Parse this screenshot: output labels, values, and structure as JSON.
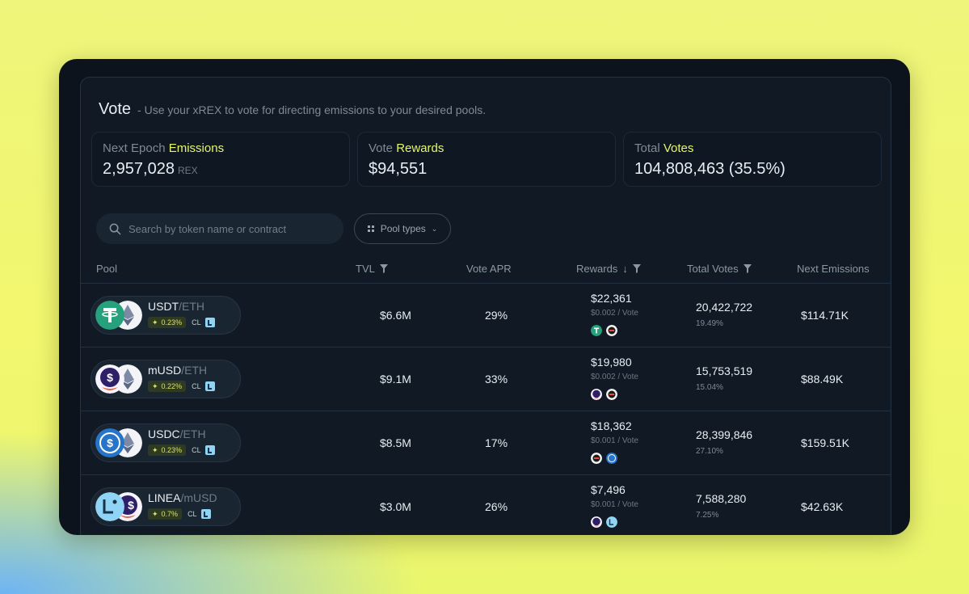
{
  "app": {
    "title": "Vote",
    "subtitle": "- Use your xREX to vote for directing emissions to your desired pools."
  },
  "stats": [
    {
      "label_prefix": "Next Epoch",
      "label_highlight": "Emissions",
      "value": "2,957,028",
      "unit": "REX"
    },
    {
      "label_prefix": "Vote",
      "label_highlight": "Rewards",
      "value": "$94,551",
      "unit": ""
    },
    {
      "label_prefix": "Total",
      "label_highlight": "Votes",
      "value": "104,808,463 (35.5%)",
      "unit": ""
    }
  ],
  "search": {
    "placeholder": "Search by token name or contract"
  },
  "filter": {
    "label": "Pool types"
  },
  "columns": {
    "pool": "Pool",
    "tvl": "TVL",
    "vote_apr": "Vote APR",
    "rewards": "Rewards",
    "rewards_sort": "↓",
    "total_votes": "Total Votes",
    "next_emissions": "Next Emissions"
  },
  "rows": [
    {
      "base": "USDT",
      "quote": "/ETH",
      "fee": "0.23%",
      "type": "CL",
      "tvl": "$6.6M",
      "apr": "29%",
      "rewards": "$22,361",
      "per_vote": "$0.002 / Vote",
      "votes": "20,422,722",
      "votes_pct": "19.49%",
      "emissions": "$114.71K"
    },
    {
      "base": "mUSD",
      "quote": "/ETH",
      "fee": "0.22%",
      "type": "CL",
      "tvl": "$9.1M",
      "apr": "33%",
      "rewards": "$19,980",
      "per_vote": "$0.002 / Vote",
      "votes": "15,753,519",
      "votes_pct": "15.04%",
      "emissions": "$88.49K"
    },
    {
      "base": "USDC",
      "quote": "/ETH",
      "fee": "0.23%",
      "type": "CL",
      "tvl": "$8.5M",
      "apr": "17%",
      "rewards": "$18,362",
      "per_vote": "$0.001 / Vote",
      "votes": "28,399,846",
      "votes_pct": "27.10%",
      "emissions": "$159.51K"
    },
    {
      "base": "LINEA",
      "quote": "/mUSD",
      "fee": "0.7%",
      "type": "CL",
      "tvl": "$3.0M",
      "apr": "26%",
      "rewards": "$7,496",
      "per_vote": "$0.001 / Vote",
      "votes": "7,588,280",
      "votes_pct": "7.25%",
      "emissions": "$42.63K"
    }
  ],
  "colors": {
    "accent": "#e6f56c",
    "usdt": "#26a17b",
    "usdc": "#2775ca",
    "linea": "#8fd4f4",
    "musd": "#2d1f68"
  }
}
